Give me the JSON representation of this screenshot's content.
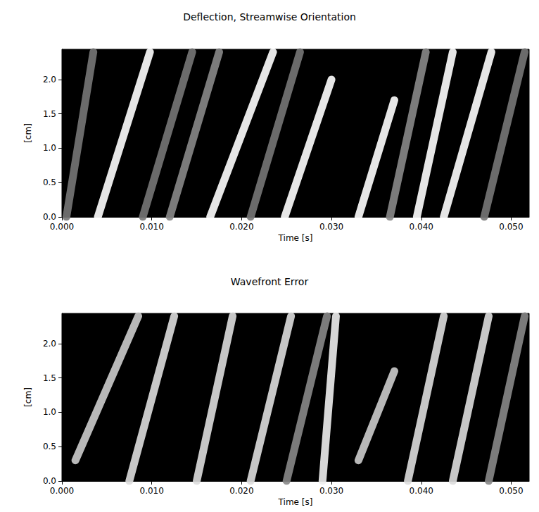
{
  "chart_data": [
    {
      "type": "line",
      "title": "Deflection, Streamwise Orientation",
      "x_label": "Time [s]",
      "y_label": "[cm]",
      "xlim": [
        0,
        0.052
      ],
      "ylim": [
        0,
        2.44
      ],
      "xticks": [
        {
          "value": 0,
          "label": "0.000"
        },
        {
          "value": 0.01,
          "label": "0.010"
        },
        {
          "value": 0.02,
          "label": "0.020"
        },
        {
          "value": 0.03,
          "label": "0.030"
        },
        {
          "value": 0.04,
          "label": "0.040"
        },
        {
          "value": 0.05,
          "label": "0.050"
        }
      ],
      "yticks": [
        {
          "value": 0,
          "label": "0.0"
        },
        {
          "value": 0.5,
          "label": "0.5"
        },
        {
          "value": 1,
          "label": "1.0"
        },
        {
          "value": 1.5,
          "label": "1.5"
        },
        {
          "value": 2,
          "label": "2.0"
        }
      ],
      "grid": false,
      "series": [
        {
          "color": "#777777",
          "x": [
            0.0005,
            0.0035
          ],
          "values": [
            0.0,
            2.4
          ]
        },
        {
          "color": "#ffffff",
          "x": [
            0.004,
            0.0098
          ],
          "values": [
            0.0,
            2.4
          ]
        },
        {
          "color": "#777777",
          "x": [
            0.009,
            0.0145
          ],
          "values": [
            0.0,
            2.4
          ]
        },
        {
          "color": "#888888",
          "x": [
            0.012,
            0.0175
          ],
          "values": [
            0.0,
            2.4
          ]
        },
        {
          "color": "#ffffff",
          "x": [
            0.0165,
            0.0235
          ],
          "values": [
            0.0,
            2.4
          ]
        },
        {
          "color": "#777777",
          "x": [
            0.021,
            0.0265
          ],
          "values": [
            0.0,
            2.4
          ]
        },
        {
          "color": "#ffffff",
          "x": [
            0.0248,
            0.03
          ],
          "values": [
            0.0,
            2.0
          ]
        },
        {
          "color": "#ffffff",
          "x": [
            0.033,
            0.037
          ],
          "values": [
            0.0,
            1.7
          ]
        },
        {
          "color": "#888888",
          "x": [
            0.0365,
            0.0405
          ],
          "values": [
            0.0,
            2.4
          ]
        },
        {
          "color": "#ffffff",
          "x": [
            0.0395,
            0.0435
          ],
          "values": [
            0.0,
            2.4
          ]
        },
        {
          "color": "#ffffff",
          "x": [
            0.0425,
            0.0478
          ],
          "values": [
            0.0,
            2.4
          ]
        },
        {
          "color": "#777777",
          "x": [
            0.047,
            0.0515
          ],
          "values": [
            0.0,
            2.4
          ]
        }
      ]
    },
    {
      "type": "line",
      "title": "Wavefront Error",
      "x_label": "Time [s]",
      "y_label": "[cm]",
      "xlim": [
        0,
        0.052
      ],
      "ylim": [
        0,
        2.44
      ],
      "xticks": [
        {
          "value": 0,
          "label": "0.000"
        },
        {
          "value": 0.01,
          "label": "0.010"
        },
        {
          "value": 0.02,
          "label": "0.020"
        },
        {
          "value": 0.03,
          "label": "0.030"
        },
        {
          "value": 0.04,
          "label": "0.040"
        },
        {
          "value": 0.05,
          "label": "0.050"
        }
      ],
      "yticks": [
        {
          "value": 0,
          "label": "0.0"
        },
        {
          "value": 0.5,
          "label": "0.5"
        },
        {
          "value": 1,
          "label": "1.0"
        },
        {
          "value": 1.5,
          "label": "1.5"
        },
        {
          "value": 2,
          "label": "2.0"
        }
      ],
      "grid": false,
      "series": [
        {
          "color": "#cccccc",
          "x": [
            0.0015,
            0.0085
          ],
          "values": [
            0.3,
            2.4
          ]
        },
        {
          "color": "#dddddd",
          "x": [
            0.0075,
            0.0125
          ],
          "values": [
            0.0,
            2.4
          ]
        },
        {
          "color": "#dddddd",
          "x": [
            0.015,
            0.019
          ],
          "values": [
            0.0,
            2.4
          ]
        },
        {
          "color": "#dddddd",
          "x": [
            0.021,
            0.0255
          ],
          "values": [
            0.0,
            2.4
          ]
        },
        {
          "color": "#888888",
          "x": [
            0.025,
            0.0295
          ],
          "values": [
            0.0,
            2.4
          ]
        },
        {
          "color": "#eeeeee",
          "x": [
            0.029,
            0.0305
          ],
          "values": [
            0.0,
            2.4
          ]
        },
        {
          "color": "#cccccc",
          "x": [
            0.033,
            0.037
          ],
          "values": [
            0.3,
            1.6
          ]
        },
        {
          "color": "#dddddd",
          "x": [
            0.0385,
            0.0425
          ],
          "values": [
            0.0,
            2.4
          ]
        },
        {
          "color": "#dddddd",
          "x": [
            0.0435,
            0.0475
          ],
          "values": [
            0.0,
            2.4
          ]
        },
        {
          "color": "#888888",
          "x": [
            0.0475,
            0.0515
          ],
          "values": [
            0.0,
            2.4
          ]
        }
      ]
    }
  ]
}
